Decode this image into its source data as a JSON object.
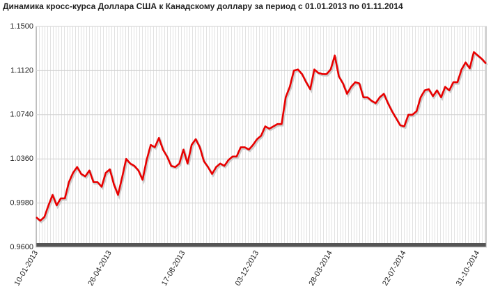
{
  "chart_data": {
    "type": "line",
    "title": "Динамика кросс-курса Доллара США к Канадскому доллару за период с 01.01.2013 по 01.11.2014",
    "categories": [
      "10-01-2013",
      null,
      null,
      null,
      null,
      null,
      null,
      null,
      null,
      null,
      null,
      null,
      null,
      null,
      null,
      null,
      null,
      null,
      "26-04-2013",
      null,
      null,
      null,
      null,
      null,
      null,
      null,
      null,
      null,
      null,
      null,
      null,
      null,
      null,
      null,
      null,
      null,
      "17-08-2013",
      null,
      null,
      null,
      null,
      null,
      null,
      null,
      null,
      null,
      null,
      null,
      null,
      null,
      null,
      null,
      null,
      null,
      "03-12-2013",
      null,
      null,
      null,
      null,
      null,
      null,
      null,
      null,
      null,
      null,
      null,
      null,
      null,
      null,
      null,
      null,
      null,
      "28-03-2014",
      null,
      null,
      null,
      null,
      null,
      null,
      null,
      null,
      null,
      null,
      null,
      null,
      null,
      null,
      null,
      null,
      null,
      "22-07-2014",
      null,
      null,
      null,
      null,
      null,
      null,
      null,
      null,
      null,
      null,
      null,
      null,
      null,
      null,
      null,
      null,
      null,
      "31-10-2014",
      null,
      null
    ],
    "series": [
      {
        "color": "#e80000",
        "values": [
          0.9858,
          0.9828,
          0.986,
          0.996,
          1.005,
          0.996,
          1.002,
          1.002,
          1.016,
          1.024,
          1.029,
          1.023,
          1.021,
          1.026,
          1.016,
          1.016,
          1.012,
          1.024,
          1.027,
          1.014,
          1.005,
          1.02,
          1.036,
          1.032,
          1.03,
          1.026,
          1.018,
          1.035,
          1.048,
          1.046,
          1.054,
          1.044,
          1.038,
          1.03,
          1.029,
          1.032,
          1.044,
          1.032,
          1.048,
          1.053,
          1.046,
          1.034,
          1.029,
          1.023,
          1.029,
          1.032,
          1.03,
          1.035,
          1.038,
          1.038,
          1.046,
          1.046,
          1.044,
          1.048,
          1.053,
          1.056,
          1.064,
          1.062,
          1.064,
          1.066,
          1.066,
          1.089,
          1.098,
          1.112,
          1.113,
          1.109,
          1.102,
          1.096,
          1.113,
          1.11,
          1.109,
          1.109,
          1.113,
          1.125,
          1.107,
          1.101,
          1.092,
          1.098,
          1.102,
          1.101,
          1.089,
          1.089,
          1.086,
          1.084,
          1.089,
          1.092,
          1.084,
          1.077,
          1.071,
          1.065,
          1.064,
          1.074,
          1.074,
          1.077,
          1.089,
          1.095,
          1.096,
          1.09,
          1.095,
          1.089,
          1.098,
          1.095,
          1.102,
          1.102,
          1.113,
          1.119,
          1.114,
          1.128,
          1.125,
          1.122,
          1.118
        ]
      }
    ],
    "ylim": [
      0.96,
      1.15
    ],
    "yticks": [
      {
        "value": 0.96,
        "label": "0.9600"
      },
      {
        "value": 0.998,
        "label": "0.9980"
      },
      {
        "value": 1.036,
        "label": "1.0360"
      },
      {
        "value": 1.074,
        "label": "1.0740"
      },
      {
        "value": 1.112,
        "label": "1.1120"
      },
      {
        "value": 1.15,
        "label": "1.1500"
      }
    ],
    "grid": true
  }
}
